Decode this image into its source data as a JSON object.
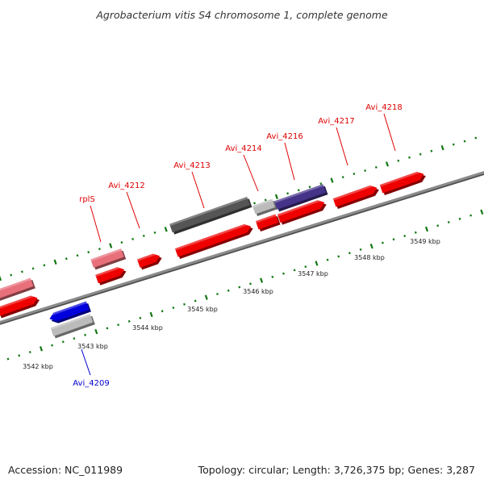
{
  "title": "Agrobacterium vitis S4 chromosome 1, complete genome",
  "footer": {
    "accession": "Accession: NC_011989",
    "summary": "Topology: circular; Length: 3,726,375 bp; Genes: 3,287"
  },
  "colors": {
    "forward_gene": "#ee0000",
    "reverse_gene": "#0000dd",
    "pseudo_gene": "#e8707a",
    "dark_gene": "#555555",
    "light_gene": "#bbbbbb",
    "purple_gene": "#443388",
    "axis": "#777777",
    "tick": "#117711",
    "label_forward": "#dd0000",
    "label_reverse": "#0000cc"
  },
  "scale_labels": [
    "3542 kbp",
    "3543 kbp",
    "3544 kbp",
    "3545 kbp",
    "3546 kbp",
    "3547 kbp",
    "3548 kbp",
    "3549 kbp"
  ],
  "gene_labels": [
    {
      "name": "rplS",
      "strand": "forward"
    },
    {
      "name": "Avi_4212",
      "strand": "forward"
    },
    {
      "name": "Avi_4213",
      "strand": "forward"
    },
    {
      "name": "Avi_4214",
      "strand": "forward"
    },
    {
      "name": "Avi_4216",
      "strand": "forward"
    },
    {
      "name": "Avi_4217",
      "strand": "forward"
    },
    {
      "name": "Avi_4218",
      "strand": "forward"
    },
    {
      "name": "Avi_4209",
      "strand": "reverse"
    }
  ]
}
